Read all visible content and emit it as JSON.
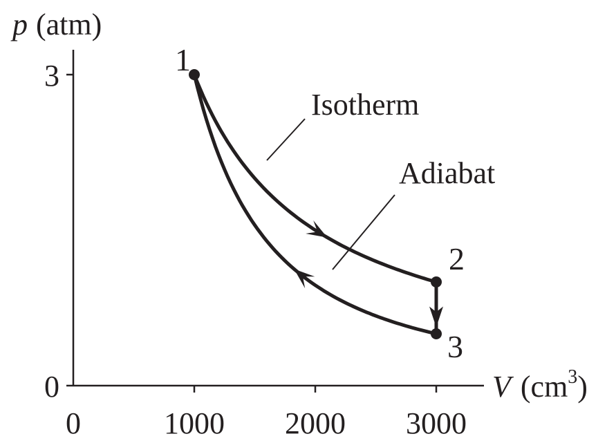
{
  "chart_data": {
    "type": "line",
    "title": "",
    "xaxis": {
      "variable": "V",
      "unit_open": "(cm",
      "unit_sup": "3",
      "unit_close": ")",
      "ticks": [
        0,
        1000,
        2000,
        3000
      ],
      "range": [
        0,
        3400
      ]
    },
    "yaxis": {
      "variable": "p",
      "unit": "(atm)",
      "ticks": [
        0,
        3
      ],
      "range": [
        0,
        3.6
      ]
    },
    "points": [
      {
        "label": "1",
        "V": 1000,
        "p": 3.0
      },
      {
        "label": "2",
        "V": 3000,
        "p": 1.0
      },
      {
        "label": "3",
        "V": 3000,
        "p": 0.5
      }
    ],
    "series": [
      {
        "name": "Isotherm",
        "from": "1",
        "to": "2",
        "direction": "1 to 2"
      },
      {
        "name": "Adiabat",
        "from": "3",
        "to": "1",
        "direction": "3 to 1"
      }
    ],
    "isochoric_step": {
      "from": "2",
      "to": "3",
      "direction": "2 to 3"
    },
    "grid": false,
    "legend": "none"
  },
  "colors": {
    "ink": "#231f20",
    "background": "#ffffff"
  }
}
